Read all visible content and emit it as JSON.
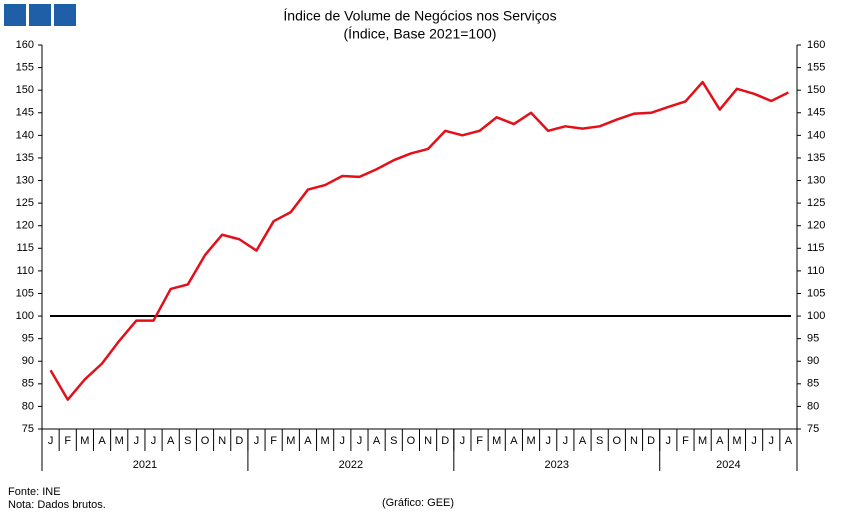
{
  "chart_data": {
    "type": "line",
    "title": "Índice de Volume de Negócios nos Serviços",
    "subtitle": "(Índice, Base 2021=100)",
    "categories": [
      "J",
      "F",
      "M",
      "A",
      "M",
      "J",
      "J",
      "A",
      "S",
      "O",
      "N",
      "D",
      "J",
      "F",
      "M",
      "A",
      "M",
      "J",
      "J",
      "A",
      "S",
      "O",
      "N",
      "D",
      "J",
      "F",
      "M",
      "A",
      "M",
      "J",
      "J",
      "A",
      "S",
      "O",
      "N",
      "D",
      "J",
      "F",
      "M",
      "A",
      "M",
      "J",
      "J",
      "A"
    ],
    "groups": [
      "2021",
      null,
      null,
      null,
      null,
      null,
      null,
      null,
      null,
      null,
      null,
      null,
      "2022",
      null,
      null,
      null,
      null,
      null,
      null,
      null,
      null,
      null,
      null,
      null,
      "2023",
      null,
      null,
      null,
      null,
      null,
      null,
      null,
      null,
      null,
      null,
      null,
      "2024",
      null,
      null,
      null,
      null,
      null,
      null,
      null
    ],
    "series": [
      {
        "color": "#e3101a",
        "values": [
          88,
          81.5,
          86,
          89.5,
          94.5,
          99,
          99,
          106,
          107,
          113.5,
          118,
          117,
          114.5,
          121,
          123,
          128,
          129,
          131,
          130.8,
          132.5,
          134.5,
          136,
          137,
          141,
          140,
          141,
          144,
          142.5,
          145,
          141,
          142,
          141.5,
          142,
          143.5,
          144.8,
          145,
          146.3,
          147.5,
          151.8,
          145.7,
          150.3,
          149.2,
          147.6,
          149.5
        ]
      }
    ],
    "ylim": [
      75,
      160
    ],
    "yticks": [
      75,
      80,
      85,
      90,
      95,
      100,
      105,
      110,
      115,
      120,
      125,
      130,
      135,
      140,
      145,
      150,
      155,
      160
    ],
    "y2lim": [
      75,
      160
    ],
    "y2ticks": [
      75,
      80,
      85,
      90,
      95,
      100,
      105,
      110,
      115,
      120,
      125,
      130,
      135,
      140,
      145,
      150,
      155,
      160
    ],
    "reference_line": 100,
    "reference_color": "#000000",
    "source": "Fonte: INE",
    "note": "Nota: Dados brutos.",
    "credit": "(Gráfico: GEE)"
  }
}
